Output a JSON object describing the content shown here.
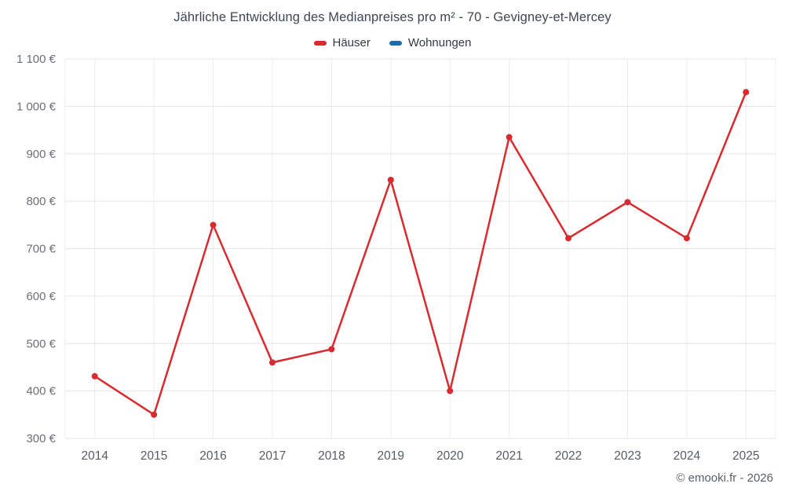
{
  "chart": {
    "title": "Jährliche Entwicklung des Medianpreises pro m² - 70 - Gevigney-et-Mercey"
  },
  "legend": {
    "items": [
      {
        "label": "Häuser",
        "color": "#d92b2f"
      },
      {
        "label": "Wohnungen",
        "color": "#1b6ca8"
      }
    ]
  },
  "footer": {
    "credit": "© emooki.fr - 2026"
  },
  "chart_data": {
    "type": "line",
    "title": "Jährliche Entwicklung des Medianpreises pro m² - 70 - Gevigney-et-Mercey",
    "categories": [
      "2014",
      "2015",
      "2016",
      "2017",
      "2018",
      "2019",
      "2020",
      "2021",
      "2022",
      "2023",
      "2024",
      "2025"
    ],
    "series": [
      {
        "name": "Häuser",
        "color": "#d92b2f",
        "values": [
          431,
          350,
          750,
          460,
          488,
          845,
          400,
          935,
          722,
          798,
          722,
          1030
        ]
      },
      {
        "name": "Wohnungen",
        "color": "#1b6ca8",
        "values": []
      }
    ],
    "xlabel": "",
    "ylabel": "",
    "ylim": [
      300,
      1100
    ],
    "ytick_step": 100,
    "ytick_suffix": " €",
    "grid": true,
    "legend_position": "top",
    "marker": "circle"
  }
}
